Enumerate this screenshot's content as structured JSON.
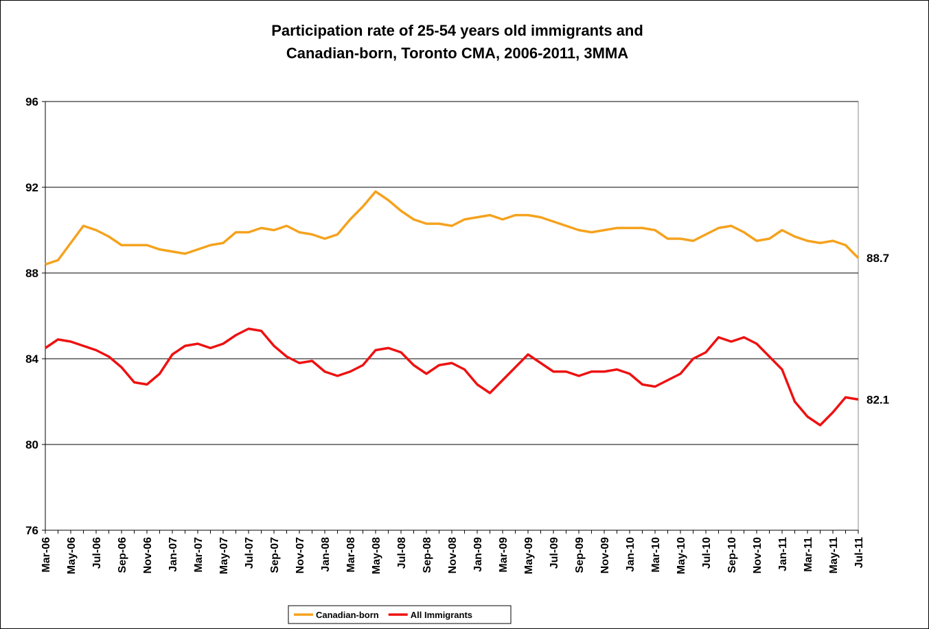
{
  "chart_data": {
    "type": "line",
    "title": [
      "Participation rate of 25-54 years old immigrants and",
      "Canadian-born, Toronto CMA, 2006-2011, 3MMA"
    ],
    "categories": [
      "Mar-06",
      null,
      "May-06",
      null,
      "Jul-06",
      null,
      "Sep-06",
      null,
      "Nov-06",
      null,
      "Jan-07",
      null,
      "Mar-07",
      null,
      "May-07",
      null,
      "Jul-07",
      null,
      "Sep-07",
      null,
      "Nov-07",
      null,
      "Jan-08",
      null,
      "Mar-08",
      null,
      "May-08",
      null,
      "Jul-08",
      null,
      "Sep-08",
      null,
      "Nov-08",
      null,
      "Jan-09",
      null,
      "Mar-09",
      null,
      "May-09",
      null,
      "Jul-09",
      null,
      "Sep-09",
      null,
      "Nov-09",
      null,
      "Jan-10",
      null,
      "Mar-10",
      null,
      "May-10",
      null,
      "Jul-10",
      null,
      "Sep-10",
      null,
      "Nov-10",
      null,
      "Jan-11",
      null,
      "Mar-11",
      null,
      "May-11",
      null,
      "Jul-11"
    ],
    "series": [
      {
        "name": "Canadian-born",
        "color": "#f5a21d",
        "values": [
          88.4,
          88.6,
          89.4,
          90.2,
          90.0,
          89.7,
          89.3,
          89.3,
          89.3,
          89.1,
          89.0,
          88.9,
          89.1,
          89.3,
          89.4,
          89.9,
          89.9,
          90.1,
          90.0,
          90.2,
          89.9,
          89.8,
          89.6,
          89.8,
          90.5,
          91.1,
          91.8,
          91.4,
          90.9,
          90.5,
          90.3,
          90.3,
          90.2,
          90.5,
          90.6,
          90.7,
          90.5,
          90.7,
          90.7,
          90.6,
          90.4,
          90.2,
          90.0,
          89.9,
          90.0,
          90.1,
          90.1,
          90.1,
          90.0,
          89.6,
          89.6,
          89.5,
          89.8,
          90.1,
          90.2,
          89.9,
          89.5,
          89.6,
          90.0,
          89.7,
          89.5,
          89.4,
          89.5,
          89.3,
          88.7
        ]
      },
      {
        "name": "All Immigrants",
        "color": "#ee1111",
        "values": [
          84.5,
          84.9,
          84.8,
          84.6,
          84.4,
          84.1,
          83.6,
          82.9,
          82.8,
          83.3,
          84.2,
          84.6,
          84.7,
          84.5,
          84.7,
          85.1,
          85.4,
          85.3,
          84.6,
          84.1,
          83.8,
          83.9,
          83.4,
          83.2,
          83.4,
          83.7,
          84.4,
          84.5,
          84.3,
          83.7,
          83.3,
          83.7,
          83.8,
          83.5,
          82.8,
          82.4,
          83.0,
          83.6,
          84.2,
          83.8,
          83.4,
          83.4,
          83.2,
          83.4,
          83.4,
          83.5,
          83.3,
          82.8,
          82.7,
          83.0,
          83.3,
          84.0,
          84.3,
          85.0,
          84.8,
          85.0,
          84.7,
          84.1,
          83.5,
          82.0,
          81.3,
          80.9,
          81.5,
          82.2,
          82.1
        ]
      }
    ],
    "ylim": [
      76,
      96
    ],
    "yticks": [
      76,
      80,
      84,
      88,
      92,
      96
    ],
    "grid": true,
    "legend": "bottom"
  }
}
